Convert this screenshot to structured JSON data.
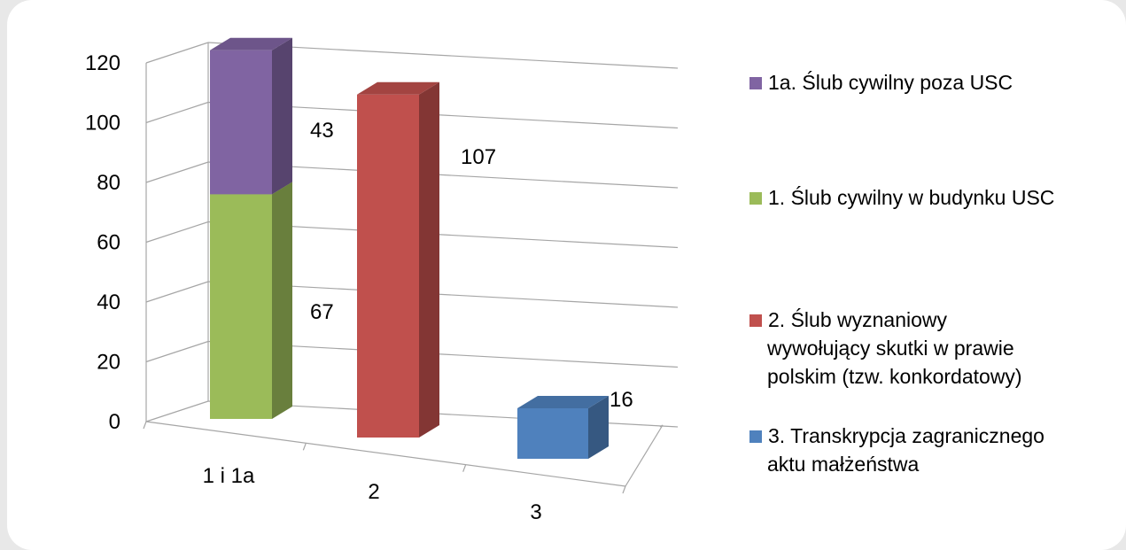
{
  "chart_data": {
    "type": "bar",
    "stacked": true,
    "three_d": true,
    "categories": [
      "1 i 1a",
      "2",
      "3"
    ],
    "series": [
      {
        "name": "1. Ślub cywilny w budynku USC",
        "values": [
          67,
          0,
          0
        ],
        "color": "#9bbb59",
        "labels": [
          "67",
          "",
          ""
        ]
      },
      {
        "name": "1a. Ślub cywilny poza USC",
        "values": [
          43,
          0,
          0
        ],
        "color": "#8064a2",
        "labels": [
          "43",
          "",
          ""
        ]
      },
      {
        "name": "2. Ślub wyznaniowy wywołujący skutki w prawie polskim (tzw. konkordatowy)",
        "values": [
          0,
          107,
          0
        ],
        "color": "#c0504d",
        "labels": [
          "",
          "107",
          ""
        ]
      },
      {
        "name": "3. Transkrypcja zagranicznego aktu małżeństwa",
        "values": [
          0,
          0,
          16
        ],
        "color": "#4f81bd",
        "labels": [
          "",
          "",
          "16"
        ]
      }
    ],
    "yticks": [
      "0",
      "20",
      "40",
      "60",
      "80",
      "100",
      "120"
    ],
    "ylim": [
      0,
      120
    ],
    "grid": true,
    "legend_position": "right",
    "legend": [
      {
        "lines": [
          "1a. Ślub cywilny poza USC"
        ],
        "color": "#8064a2"
      },
      {
        "lines": [
          "1. Ślub cywilny w budynku USC"
        ],
        "color": "#9bbb59"
      },
      {
        "lines": [
          "2. Ślub wyznaniowy",
          "wywołujący skutki w prawie",
          "polskim (tzw. konkordatowy)"
        ],
        "color": "#c0504d"
      },
      {
        "lines": [
          "3. Transkrypcja zagranicznego",
          "aktu małżeństwa"
        ],
        "color": "#4f81bd"
      }
    ]
  }
}
